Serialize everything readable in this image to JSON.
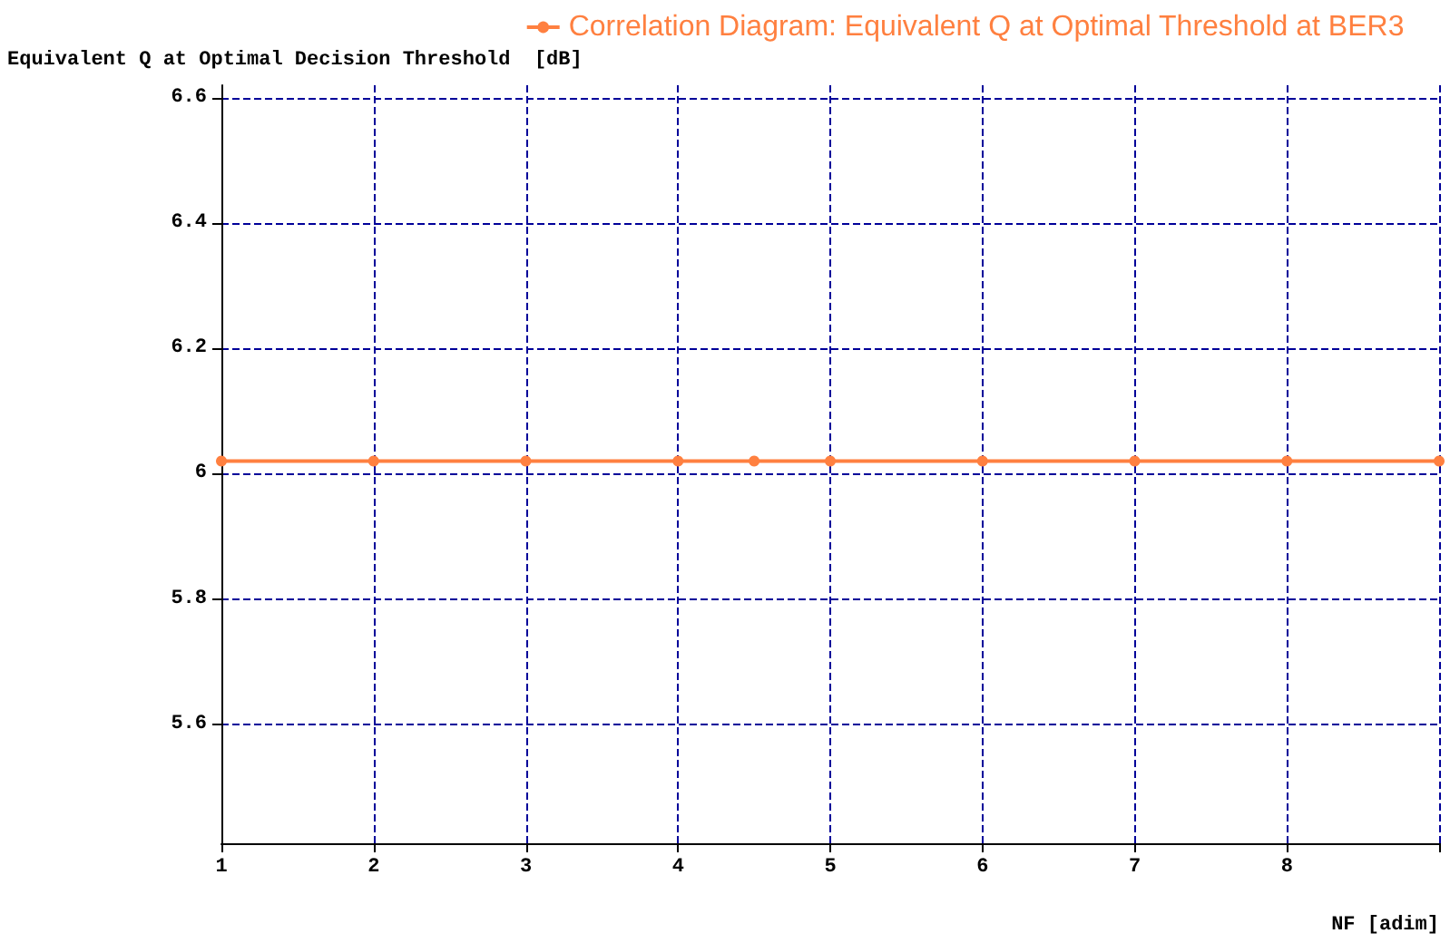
{
  "chart_data": {
    "type": "line",
    "ylabel": "Equivalent Q at Optimal Decision Threshold  [dB]",
    "xlabel": "NF [adim]",
    "x": [
      1,
      2,
      3,
      4,
      4.5,
      5,
      6,
      7,
      8,
      9
    ],
    "series": [
      {
        "name": "Correlation Diagram: Equivalent Q at Optimal Threshold at BER3",
        "color": "#ff8040",
        "values": [
          6.02,
          6.02,
          6.02,
          6.02,
          6.02,
          6.02,
          6.02,
          6.02,
          6.02,
          6.02
        ]
      }
    ],
    "xlim": [
      1,
      9
    ],
    "xticks": [
      1,
      2,
      3,
      4,
      5,
      6,
      7,
      8,
      {
        "value": 9,
        "label": null
      }
    ],
    "ylim": [
      5.41,
      6.62
    ],
    "yticks": [
      5.6,
      5.8,
      6,
      6.2,
      6.4,
      6.6
    ],
    "grid": true,
    "legend": "top right",
    "marker": "circle",
    "line_style": "solid"
  }
}
